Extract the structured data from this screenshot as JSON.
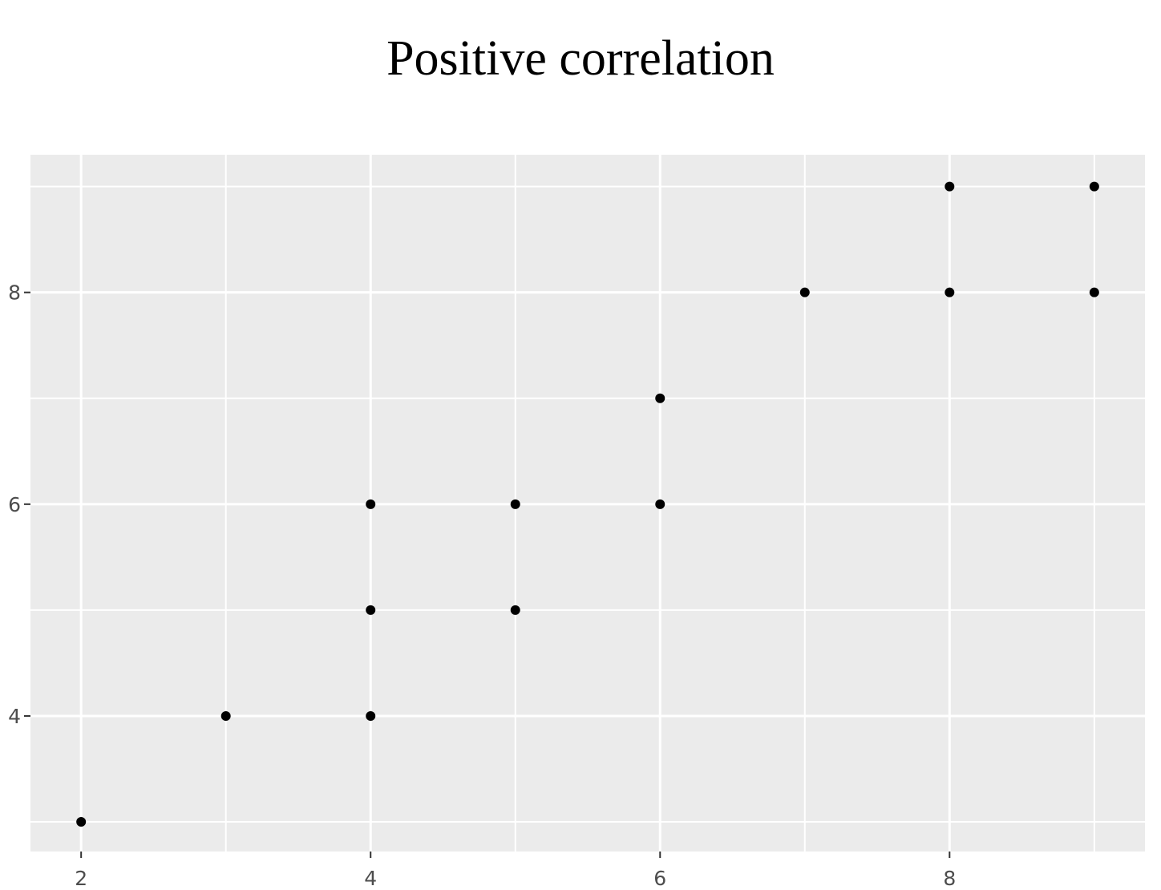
{
  "chart_data": {
    "type": "scatter",
    "title": "Positive correlation",
    "xlabel": "",
    "ylabel": "",
    "xlim": [
      1.65,
      9.35
    ],
    "ylim": [
      2.72,
      9.3
    ],
    "x_ticks": [
      2,
      4,
      6,
      8
    ],
    "x_minor": [
      3,
      5,
      7,
      9
    ],
    "y_ticks": [
      4,
      6,
      8
    ],
    "y_minor": [
      3,
      5,
      7,
      9
    ],
    "grid": true,
    "panel_color": "#ebebeb",
    "grid_color": "#ffffff",
    "point_color": "#000000",
    "points": [
      {
        "x": 2,
        "y": 3
      },
      {
        "x": 3,
        "y": 4
      },
      {
        "x": 4,
        "y": 4
      },
      {
        "x": 4,
        "y": 5
      },
      {
        "x": 4,
        "y": 6
      },
      {
        "x": 5,
        "y": 5
      },
      {
        "x": 5,
        "y": 6
      },
      {
        "x": 6,
        "y": 6
      },
      {
        "x": 6,
        "y": 7
      },
      {
        "x": 7,
        "y": 8
      },
      {
        "x": 8,
        "y": 8
      },
      {
        "x": 8,
        "y": 9
      },
      {
        "x": 9,
        "y": 8
      },
      {
        "x": 9,
        "y": 9
      }
    ]
  }
}
